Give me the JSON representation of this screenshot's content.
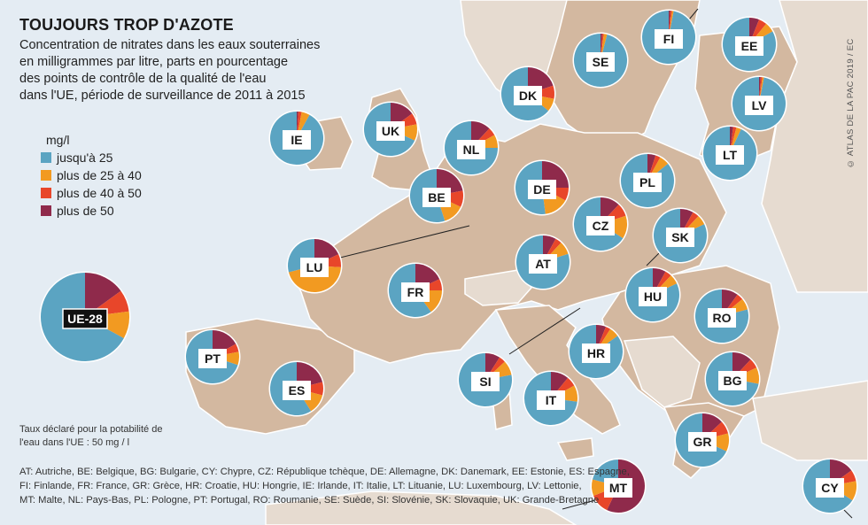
{
  "title": "TOUJOURS TROP D'AZOTE",
  "subtitle_lines": [
    "Concentration de nitrates dans les eaux souterraines",
    "en milligrammes par litre, parts en pourcentage",
    "des points de contrôle de la qualité de l'eau",
    "dans l'UE, période de surveillance de 2011 à 2015"
  ],
  "legend": {
    "unit": "mg/l",
    "items": [
      {
        "label": "jusqu'à 25",
        "color": "#5ba4c2"
      },
      {
        "label": "plus de 25 à 40",
        "color": "#f29a21"
      },
      {
        "label": "plus de 40 à 50",
        "color": "#e8462a"
      },
      {
        "label": "plus de 50",
        "color": "#8f2a4b"
      }
    ]
  },
  "note_lines": [
    "Taux déclaré pour la potabilité de",
    "l'eau dans l'UE : 50 mg / l"
  ],
  "abbreviations_lines": [
    "AT: Autriche, BE: Belgique, BG: Bulgarie, CY: Chypre, CZ: République tchèque, DE: Allemagne, DK: Danemark, EE: Estonie, ES: Espagne,",
    "FI: Finlande, FR: France, GR: Grèce, HR: Croatie, HU: Hongrie, IE: Irlande, IT: Italie, LT: Lituanie, LU: Luxembourg, LV: Lettonie,",
    "MT: Malte, NL: Pays-Bas, PL: Pologne, PT: Portugal, RO: Roumanie, SE: Suède, SI: Slovénie, SK: Slovaquie, UK: Grande-Bretagne"
  ],
  "copyright": "© ATLAS DE LA PAC 2019 / EC",
  "colors": {
    "sea": "#e4ecf3",
    "eu_land": "#d3b8a0",
    "other_land": "#e6dbd0",
    "border": "#ffffff"
  },
  "chart_data": {
    "type": "pie",
    "unit": "% des points de contrôle",
    "categories": [
      "jusqu'à 25",
      "plus de 25 à 40",
      "plus de 40 à 50",
      "plus de 50"
    ],
    "pies": [
      {
        "code": "UE-28",
        "values": [
          67,
          10,
          8,
          15
        ]
      },
      {
        "code": "FI",
        "values": [
          97,
          1,
          1,
          1
        ]
      },
      {
        "code": "SE",
        "values": [
          96,
          2,
          1,
          1
        ]
      },
      {
        "code": "EE",
        "values": [
          83,
          6,
          5,
          6
        ]
      },
      {
        "code": "LV",
        "values": [
          97,
          1,
          1,
          1
        ]
      },
      {
        "code": "LT",
        "values": [
          93,
          3,
          2,
          2
        ]
      },
      {
        "code": "DK",
        "values": [
          64,
          8,
          8,
          20
        ]
      },
      {
        "code": "IE",
        "values": [
          92,
          5,
          2,
          1
        ]
      },
      {
        "code": "UK",
        "values": [
          68,
          10,
          7,
          15
        ]
      },
      {
        "code": "NL",
        "values": [
          75,
          8,
          5,
          12
        ]
      },
      {
        "code": "BE",
        "values": [
          55,
          13,
          10,
          22
        ]
      },
      {
        "code": "DE",
        "values": [
          52,
          15,
          8,
          25
        ]
      },
      {
        "code": "PL",
        "values": [
          86,
          6,
          3,
          5
        ]
      },
      {
        "code": "CZ",
        "values": [
          66,
          14,
          8,
          12
        ]
      },
      {
        "code": "SK",
        "values": [
          82,
          6,
          4,
          8
        ]
      },
      {
        "code": "LU",
        "values": [
          29,
          45,
          8,
          18
        ]
      },
      {
        "code": "FR",
        "values": [
          60,
          15,
          7,
          18
        ]
      },
      {
        "code": "AT",
        "values": [
          80,
          8,
          4,
          8
        ]
      },
      {
        "code": "HU",
        "values": [
          82,
          6,
          4,
          8
        ]
      },
      {
        "code": "RO",
        "values": [
          79,
          7,
          4,
          10
        ]
      },
      {
        "code": "PT",
        "values": [
          70,
          8,
          5,
          17
        ]
      },
      {
        "code": "ES",
        "values": [
          59,
          12,
          8,
          21
        ]
      },
      {
        "code": "HR",
        "values": [
          85,
          6,
          3,
          6
        ]
      },
      {
        "code": "SI",
        "values": [
          78,
          9,
          4,
          9
        ]
      },
      {
        "code": "IT",
        "values": [
          73,
          10,
          6,
          11
        ]
      },
      {
        "code": "BG",
        "values": [
          72,
          10,
          6,
          12
        ]
      },
      {
        "code": "GR",
        "values": [
          68,
          11,
          8,
          13
        ]
      },
      {
        "code": "MT",
        "values": [
          21,
          10,
          12,
          57
        ]
      },
      {
        "code": "CY",
        "values": [
          66,
          12,
          7,
          15
        ]
      }
    ]
  }
}
